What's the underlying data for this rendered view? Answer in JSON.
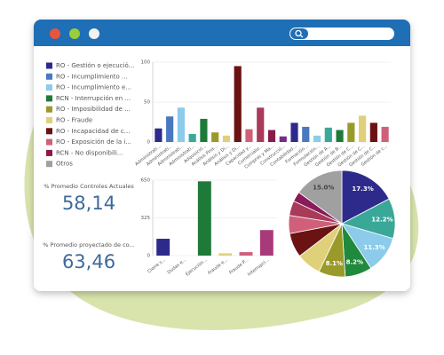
{
  "legend": [
    {
      "label": "RO - Gestión o ejecució...",
      "color": "#2e2a8c"
    },
    {
      "label": "RO - Incumplimiento ...",
      "color": "#4a78c0"
    },
    {
      "label": "RO - Incumplimiento e...",
      "color": "#8ccbea"
    },
    {
      "label": "RCN - Interrupción en ...",
      "color": "#1f7a3a"
    },
    {
      "label": "RO - Imposibilidad de ...",
      "color": "#9a9a2a"
    },
    {
      "label": "RO - Fraude",
      "color": "#e0d07a"
    },
    {
      "label": "RO - Incapacidad de c...",
      "color": "#6b1212"
    },
    {
      "label": "RO - Exposición de la i...",
      "color": "#d0607a"
    },
    {
      "label": "RCN - No disponibili...",
      "color": "#8a1a4a"
    },
    {
      "label": "Otros",
      "color": "#a0a0a0"
    }
  ],
  "kpis": [
    {
      "label": "% Promedio Controles Actuales",
      "value": "58,14"
    },
    {
      "label": "% Promedio proyectado de co...",
      "value": "63,46"
    }
  ],
  "chart_data": [
    {
      "type": "bar",
      "categories": [
        "Administrati...",
        "Administrati...",
        "Administrati...",
        "Administrati...",
        "Adquisició...",
        "Análisis Fina...",
        "Análisis y Di...",
        "Análisis y Di...",
        "Capacidad y...",
        "Comercializ...",
        "Compras y Ma...",
        "Construcció...",
        "Contabilidad...",
        "Formación...",
        "Formulación...",
        "Gestión de A...",
        "Gestión de B...",
        "Gestión de C...",
        "Gestión de C...",
        "Gestión de C...",
        "Gestión de c..."
      ],
      "values": [
        17,
        32,
        43,
        10,
        29,
        12,
        8,
        95,
        16,
        43,
        15,
        7,
        24,
        19,
        8,
        18,
        15,
        24,
        33,
        24,
        19
      ],
      "colors": [
        "#2e2a8c",
        "#4a78c0",
        "#8ccbea",
        "#3aa898",
        "#1f7a3a",
        "#9a9a2a",
        "#e0d07a",
        "#6b1212",
        "#d0607a",
        "#a83a5a",
        "#8a1a4a",
        "#7a2a8a",
        "#2e2a8c",
        "#4a78c0",
        "#8ccbea",
        "#3aa898",
        "#1f7a3a",
        "#9a9a2a",
        "#e0d07a",
        "#6b1212",
        "#d0607a"
      ],
      "ylim": [
        0,
        100
      ],
      "yticks": [
        0,
        50,
        100
      ],
      "grid": true
    },
    {
      "type": "bar",
      "categories": [
        "Cierre s...",
        "Dudas e...",
        "Ejecución...",
        "Fraude e...",
        "Fraude P...",
        "Interrupci..."
      ],
      "values": [
        145,
        0,
        640,
        20,
        30,
        220
      ],
      "colors": [
        "#2e2a8c",
        "#4a78c0",
        "#1f7a3a",
        "#e0d07a",
        "#d0607a",
        "#a83a7a"
      ],
      "ylim": [
        0,
        650
      ],
      "yticks": [
        0,
        325,
        650
      ],
      "grid": true
    },
    {
      "type": "pie",
      "values": [
        17.3,
        12.2,
        11.3,
        8.2,
        8.1,
        7.5,
        7.4,
        5.5,
        4.5,
        3.0,
        15.0
      ],
      "value_labels": [
        "17.3%",
        "12.2%",
        "11.3%",
        "8.2%",
        "8.1%",
        null,
        null,
        null,
        null,
        null,
        "15.0%"
      ],
      "colors": [
        "#2e2a8c",
        "#3aa898",
        "#8ccbea",
        "#1f8a3c",
        "#9a9a2a",
        "#e0d07a",
        "#6b1212",
        "#d0607a",
        "#a83a5a",
        "#8a1a5a",
        "#a0a0a0"
      ]
    }
  ]
}
